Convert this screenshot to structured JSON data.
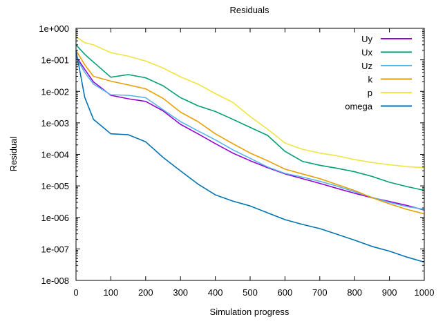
{
  "chart_data": {
    "type": "line",
    "title": "Residuals",
    "xlabel": "Simulation progress",
    "ylabel": "Residual",
    "xlim": [
      0,
      1000
    ],
    "ylim": [
      1e-08,
      1
    ],
    "yscale": "log",
    "grid": false,
    "legend_position": "top-right",
    "x_ticks": [
      0,
      100,
      200,
      300,
      400,
      500,
      600,
      700,
      800,
      900,
      1000
    ],
    "x_tick_labels": [
      "0",
      "100",
      "200",
      "300",
      "400",
      "500",
      "600",
      "700",
      "800",
      "900",
      "1000"
    ],
    "y_ticks": [
      1,
      0.1,
      0.01,
      0.001,
      0.0001,
      1e-05,
      1e-06,
      1e-07,
      1e-08
    ],
    "y_tick_labels": [
      "1e+000",
      "1e-001",
      "1e-002",
      "1e-003",
      "1e-004",
      "1e-005",
      "1e-006",
      "1e-007",
      "1e-008"
    ],
    "x": [
      0,
      25,
      50,
      100,
      150,
      200,
      250,
      300,
      350,
      400,
      450,
      500,
      550,
      600,
      650,
      700,
      750,
      800,
      850,
      900,
      950,
      1000
    ],
    "series": [
      {
        "name": "Uy",
        "color": "#9400d3",
        "values": [
          0.13,
          0.05,
          0.02,
          0.0075,
          0.0058,
          0.0048,
          0.0024,
          0.0009,
          0.00045,
          0.00022,
          0.00011,
          6.3e-05,
          3.8e-05,
          2.4e-05,
          1.7e-05,
          1.2e-05,
          8.3e-06,
          5.8e-06,
          4.2e-06,
          3.2e-06,
          2.4e-06,
          1.7e-06
        ]
      },
      {
        "name": "Ux",
        "color": "#009e73",
        "values": [
          0.3,
          0.15,
          0.085,
          0.028,
          0.034,
          0.027,
          0.015,
          0.0063,
          0.0035,
          0.0023,
          0.0013,
          0.00072,
          0.0004,
          0.000125,
          6e-05,
          4.5e-05,
          3.6e-05,
          2.8e-05,
          2e-05,
          1.3e-05,
          9.5e-06,
          7.2e-06
        ]
      },
      {
        "name": "Uz",
        "color": "#56b4e9",
        "values": [
          0.12,
          0.04,
          0.017,
          0.0078,
          0.0075,
          0.0063,
          0.0026,
          0.0011,
          0.00056,
          0.00029,
          0.00014,
          7.5e-05,
          4e-05,
          2.5e-05,
          1.9e-05,
          1.4e-05,
          9.8e-06,
          6.5e-06,
          4.3e-06,
          3e-06,
          2.2e-06,
          1.8e-06
        ]
      },
      {
        "name": "k",
        "color": "#e69f00",
        "values": [
          0.2,
          0.07,
          0.03,
          0.021,
          0.016,
          0.012,
          0.006,
          0.0022,
          0.0011,
          0.00045,
          0.00022,
          0.00011,
          6.3e-05,
          3.4e-05,
          2.4e-05,
          1.7e-05,
          1.1e-05,
          7.1e-06,
          4.2e-06,
          2.7e-06,
          1.8e-06,
          1.3e-06
        ]
      },
      {
        "name": "p",
        "color": "#f0e442",
        "values": [
          0.55,
          0.35,
          0.3,
          0.17,
          0.13,
          0.092,
          0.055,
          0.029,
          0.017,
          0.0085,
          0.0045,
          0.0016,
          0.00063,
          0.00023,
          0.000145,
          0.00011,
          9e-05,
          6.8e-05,
          5.5e-05,
          4.7e-05,
          4.1e-05,
          3.8e-05
        ]
      },
      {
        "name": "omega",
        "color": "#0072b2",
        "values": [
          0.2,
          0.0065,
          0.0013,
          0.00045,
          0.00042,
          0.00025,
          8e-05,
          3e-05,
          1.15e-05,
          5.2e-06,
          3.3e-06,
          2.3e-06,
          1.4e-06,
          8.5e-07,
          6e-07,
          4.4e-07,
          2.9e-07,
          1.9e-07,
          1.2e-07,
          8.5e-08,
          5.5e-08,
          3.8e-08
        ]
      }
    ]
  }
}
